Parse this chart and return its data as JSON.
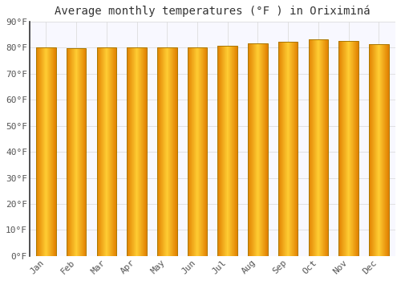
{
  "title": "Average monthly temperatures (°F ) in Oriximiná",
  "months": [
    "Jan",
    "Feb",
    "Mar",
    "Apr",
    "May",
    "Jun",
    "Jul",
    "Aug",
    "Sep",
    "Oct",
    "Nov",
    "Dec"
  ],
  "values": [
    80.1,
    79.7,
    80.1,
    80.1,
    80.1,
    80.1,
    80.6,
    81.5,
    82.2,
    83.1,
    82.6,
    81.3
  ],
  "ylim": [
    0,
    90
  ],
  "yticks": [
    0,
    10,
    20,
    30,
    40,
    50,
    60,
    70,
    80,
    90
  ],
  "bar_color_center": "#FFCC33",
  "bar_color_edge": "#E08000",
  "bar_edge_color": "#AA7700",
  "background_color": "#FFFFFF",
  "plot_bg_color": "#F8F8FF",
  "grid_color": "#DDDDDD",
  "title_fontsize": 10,
  "tick_fontsize": 8,
  "font_family": "monospace",
  "bar_width": 0.65
}
